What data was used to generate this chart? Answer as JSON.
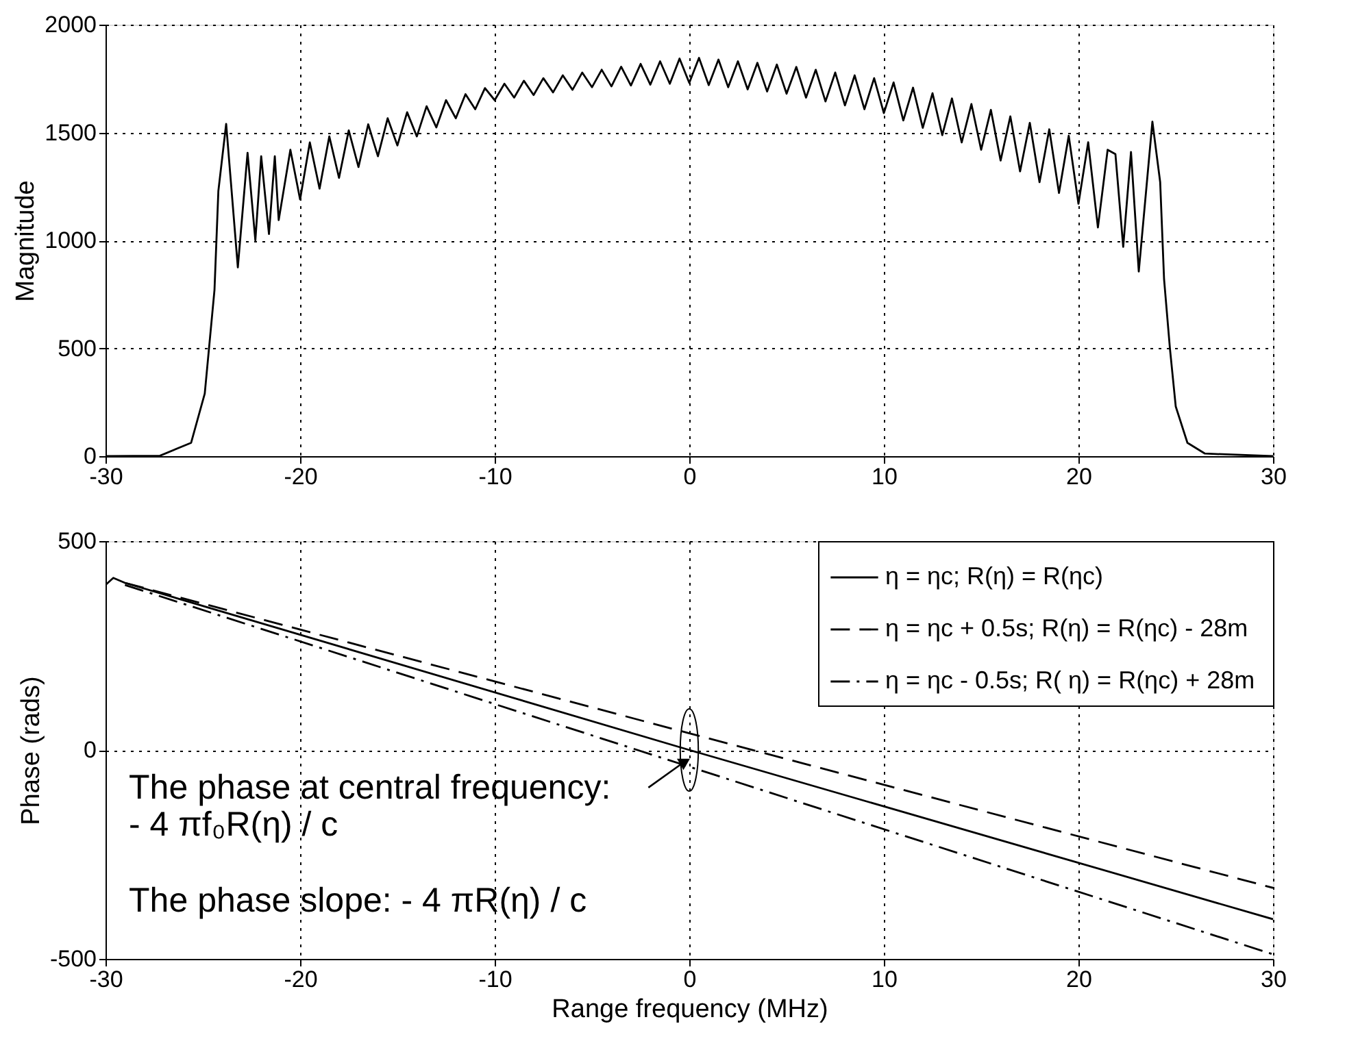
{
  "chart_data": [
    {
      "type": "line",
      "ylabel": "Magnitude",
      "color": "#000000",
      "xlim": [
        -30,
        30
      ],
      "xticks": [
        -30,
        -20,
        -10,
        0,
        10,
        20,
        30
      ],
      "ylim": [
        0,
        2000
      ],
      "yticks": [
        0,
        500,
        1000,
        1500,
        2000
      ],
      "grid": true,
      "line_style": "solid",
      "x": [
        -30,
        -27.2,
        -25.6,
        -24.9,
        -24.4,
        -24.2,
        -23.8,
        -23.2,
        -22.7,
        -22.3,
        -22.0,
        -21.6,
        -21.3,
        -21.1,
        -20.5,
        -20,
        -19.5,
        -19,
        -18.5,
        -18,
        -17.5,
        -17,
        -16.5,
        -16,
        -15.5,
        -15,
        -14.5,
        -14,
        -13.5,
        -13,
        -12.5,
        -12,
        -11.5,
        -11,
        -10.5,
        -10,
        -9.5,
        -9,
        -8.5,
        -8,
        -7.5,
        -7,
        -6.5,
        -6,
        -5.5,
        -5,
        -4.5,
        -4,
        -3.5,
        -3,
        -2.5,
        -2,
        -1.5,
        -1,
        -0.5,
        0,
        0.5,
        1,
        1.5,
        2,
        2.5,
        3,
        3.5,
        4,
        4.5,
        5,
        5.5,
        6,
        6.5,
        7,
        7.5,
        8,
        8.5,
        9,
        9.5,
        10,
        10.5,
        11,
        11.5,
        12,
        12.5,
        13,
        13.5,
        14,
        14.5,
        15,
        15.5,
        16,
        16.5,
        17,
        17.5,
        18,
        18.5,
        19,
        19.5,
        20,
        20.5,
        21,
        21.5,
        21.9,
        22.3,
        22.7,
        23.1,
        23.8,
        24.2,
        24.4,
        24.7,
        25.0,
        25.6,
        26.5,
        30
      ],
      "values": [
        0,
        2,
        62,
        290,
        770,
        1230,
        1540,
        875,
        1406,
        1000,
        1390,
        1030,
        1390,
        1094,
        1420,
        1190,
        1454,
        1240,
        1482,
        1290,
        1510,
        1340,
        1538,
        1390,
        1566,
        1440,
        1594,
        1482,
        1622,
        1524,
        1650,
        1566,
        1678,
        1608,
        1706,
        1650,
        1726,
        1662,
        1740,
        1674,
        1752,
        1686,
        1765,
        1698,
        1778,
        1710,
        1791,
        1714,
        1805,
        1718,
        1818,
        1722,
        1830,
        1726,
        1843,
        1730,
        1846,
        1720,
        1838,
        1710,
        1830,
        1700,
        1823,
        1690,
        1815,
        1680,
        1804,
        1662,
        1791,
        1644,
        1778,
        1626,
        1765,
        1608,
        1752,
        1590,
        1732,
        1556,
        1708,
        1522,
        1682,
        1488,
        1658,
        1454,
        1632,
        1420,
        1605,
        1370,
        1575,
        1320,
        1545,
        1270,
        1515,
        1220,
        1485,
        1170,
        1455,
        1060,
        1420,
        1400,
        970,
        1410,
        856,
        1550,
        1270,
        820,
        500,
        230,
        62,
        12,
        0
      ]
    },
    {
      "type": "line",
      "xlabel": "Range frequency (MHz)",
      "ylabel": "Phase (rads)",
      "xlim": [
        -30,
        30
      ],
      "xticks": [
        -30,
        -20,
        -10,
        0,
        10,
        20,
        30
      ],
      "ylim": [
        -500,
        500
      ],
      "yticks": [
        -500,
        0,
        500
      ],
      "grid": true,
      "legend": "top right",
      "series": [
        {
          "name": "η = ηc;  R(η) = R(ηc)",
          "color": "#000000",
          "line_style": "solid",
          "x": [
            -30,
            -29.6,
            -29,
            0,
            30
          ],
          "values": [
            395,
            412,
            400,
            0,
            -405
          ]
        },
        {
          "name": "η = ηc + 0.5s;  R(η) = R(ηc) - 28m",
          "color": "#000000",
          "line_style": "dashed",
          "x": [
            -29,
            0,
            30
          ],
          "values": [
            400,
            40,
            -330
          ]
        },
        {
          "name": "η = ηc - 0.5s;  R( η) = R(ηc) + 28m",
          "color": "#000000",
          "line_style": "dashdot",
          "x": [
            -29,
            0,
            30
          ],
          "values": [
            395,
            -40,
            -489
          ]
        }
      ],
      "annotations": [
        {
          "text": "The phase at central frequency:\n- 4 πf₀R(η) / c",
          "x": -0.3,
          "y": -30
        },
        "The phase slope: - 4 πR(η) / c"
      ]
    }
  ]
}
